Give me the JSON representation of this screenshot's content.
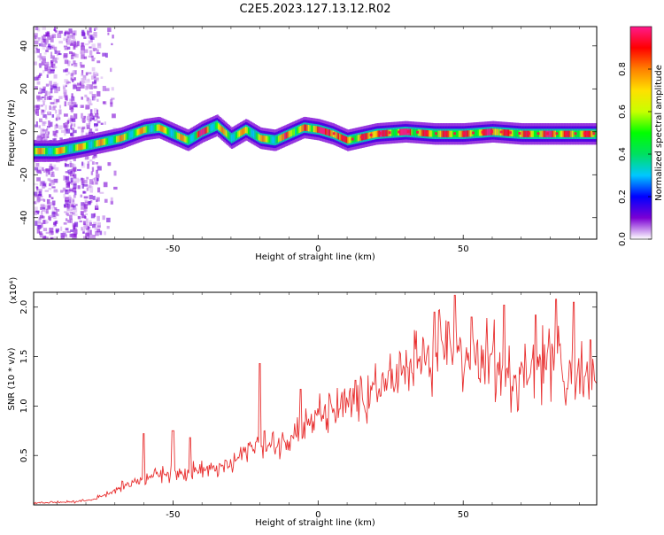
{
  "title": "C2E5.2023.127.13.12.R02",
  "chart_data": [
    {
      "type": "heatmap",
      "xlabel": "Height of straight line (km)",
      "ylabel": "Frequency (Hz)",
      "xlim": [
        -98,
        96
      ],
      "ylim": [
        -50,
        49
      ],
      "xticks": [
        -50,
        0,
        50
      ],
      "xtick_labels": [
        "-50",
        "0",
        "50"
      ],
      "yticks": [
        -40,
        -20,
        0,
        20,
        40
      ],
      "ytick_labels": [
        "-40",
        "-20",
        "0",
        "20",
        "40"
      ],
      "colorbar": {
        "label": "Normalized spectral amplitude",
        "range": [
          0,
          1
        ],
        "ticks": [
          0.0,
          0.2,
          0.4,
          0.6,
          0.8
        ],
        "tick_labels": [
          "0.0",
          "0.2",
          "0.4",
          "0.6",
          "0.8"
        ],
        "colors": [
          "#ffffff",
          "#7b00d4",
          "#0000ff",
          "#00c8ff",
          "#00e060",
          "#00ff00",
          "#c8ff00",
          "#ffe000",
          "#ff8000",
          "#ff0000",
          "#ff1a8c"
        ]
      },
      "ridge": {
        "x": [
          -98,
          -90,
          -82,
          -75,
          -68,
          -60,
          -55,
          -50,
          -45,
          -40,
          -35,
          -30,
          -25,
          -20,
          -15,
          -10,
          -5,
          0,
          5,
          10,
          20,
          30,
          40,
          50,
          60,
          70,
          80,
          90,
          96
        ],
        "y": [
          -9,
          -9,
          -7,
          -5,
          -3,
          1,
          2,
          -1,
          -4,
          0,
          3,
          -3,
          1,
          -3,
          -4,
          -1,
          2,
          1,
          -1,
          -4,
          -1,
          0,
          -1,
          -1,
          0,
          -1,
          -1,
          -1,
          -1
        ]
      },
      "peaks": [
        -40,
        -10,
        0,
        5,
        20,
        30,
        60,
        80
      ]
    },
    {
      "type": "line",
      "xlabel": "Height of straight line (km)",
      "ylabel": "SNR (10 * v/v)",
      "yscale_label": "(x10⁴)",
      "xlim": [
        -98,
        96
      ],
      "ylim": [
        0,
        2.15
      ],
      "xticks": [
        -50,
        0,
        50
      ],
      "xtick_labels": [
        "-50",
        "0",
        "50"
      ],
      "yticks": [
        0.5,
        1.0,
        1.5,
        2.0
      ],
      "ytick_labels": [
        "0.5",
        "1.0",
        "1.5",
        "2.0"
      ],
      "color": "#e83030",
      "envelope_x": [
        -98,
        -85,
        -78,
        -72,
        -65,
        -58,
        -50,
        -40,
        -30,
        -25,
        -20,
        -15,
        -10,
        -5,
        0,
        5,
        10,
        15,
        20,
        25,
        30,
        35,
        40,
        45,
        50,
        55,
        60,
        65,
        70,
        75,
        80,
        85,
        90,
        96
      ],
      "envelope_y": [
        0.02,
        0.03,
        0.05,
        0.12,
        0.22,
        0.3,
        0.33,
        0.35,
        0.4,
        0.55,
        0.62,
        0.58,
        0.7,
        0.8,
        0.9,
        0.95,
        1.0,
        1.05,
        1.15,
        1.25,
        1.35,
        1.45,
        1.5,
        1.55,
        1.55,
        1.48,
        1.45,
        1.3,
        1.35,
        1.42,
        1.45,
        1.4,
        1.35,
        1.4
      ],
      "spikes_x": [
        -60,
        -50,
        -44,
        -20,
        -6,
        13,
        40,
        45,
        47,
        53,
        64,
        75,
        82,
        88
      ],
      "spikes_y": [
        0.72,
        0.75,
        0.68,
        1.43,
        1.17,
        1.26,
        1.95,
        1.85,
        2.12,
        1.9,
        2.02,
        1.92,
        2.08,
        2.05
      ]
    }
  ]
}
